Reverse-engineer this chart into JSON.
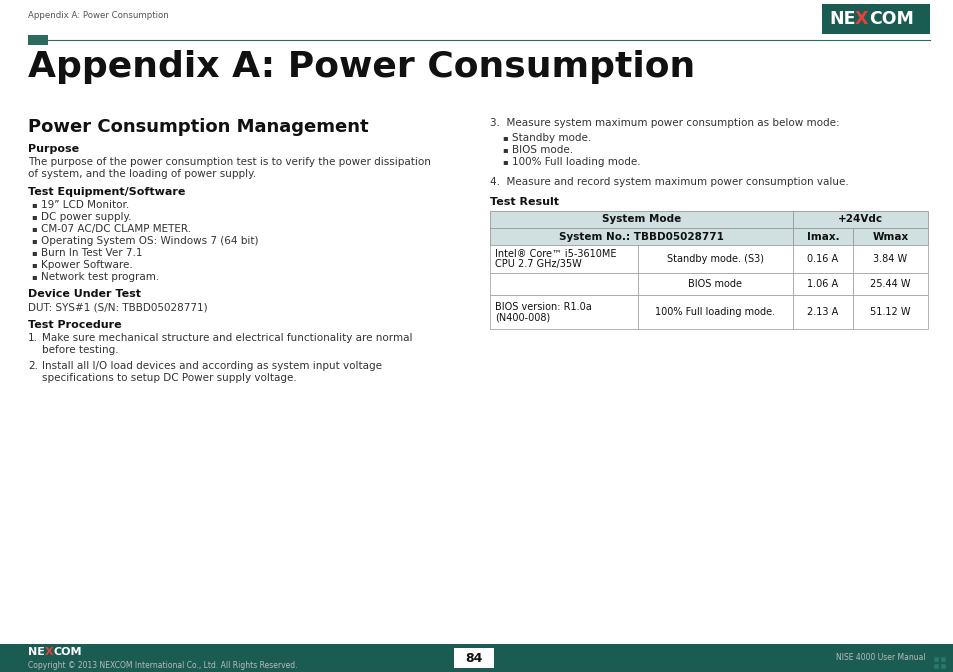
{
  "page_title": "Appendix A: Power Consumption",
  "section_title": "Power Consumption Management",
  "header_breadcrumb": "Appendix A: Power Consumption",
  "page_number": "84",
  "footer_left": "Copyright © 2013 NEXCOM International Co., Ltd. All Rights Reserved.",
  "footer_right": "NISE 4000 User Manual",
  "bg_color": "#ffffff",
  "header_line_color": "#2d6b5e",
  "header_accent_color": "#2d6b5e",
  "footer_bg_color": "#1a5c52",
  "left_column": {
    "purpose_title": "Purpose",
    "purpose_text_line1": "The purpose of the power consumption test is to verify the power dissipation",
    "purpose_text_line2": "of system, and the loading of power supply.",
    "equipment_title": "Test Equipment/Software",
    "equipment_items": [
      "19” LCD Monitor.",
      "DC power supply.",
      "CM-07 AC/DC CLAMP METER.",
      "Operating System OS: Windows 7 (64 bit)",
      "Burn In Test Ver 7.1",
      "Kpower Software.",
      "Network test program."
    ],
    "device_title": "Device Under Test",
    "device_text": "DUT: SYS#1 (S/N: TBBD05028771)",
    "procedure_title": "Test Procedure",
    "procedure_item1_line1": "Make sure mechanical structure and electrical functionality are normal",
    "procedure_item1_line2": "before testing.",
    "procedure_item2_line1": "Install all I/O load devices and according as system input voltage",
    "procedure_item2_line2": "specifications to setup DC Power supply voltage."
  },
  "right_column": {
    "step3_text": "3.  Measure system maximum power consumption as below mode:",
    "step3_items": [
      "Standby mode.",
      "BIOS mode.",
      "100% Full loading mode."
    ],
    "step4_text": "4.  Measure and record system maximum power consumption value.",
    "test_result_title": "Test Result",
    "table_header_col1": "System Mode",
    "table_header_col1b": "System No.: TBBD05028771",
    "table_header_col2": "+24Vdc",
    "table_header_col2a": "Imax.",
    "table_header_col2b": "Wmax",
    "table_rows": [
      [
        "Intel® Core™ i5-3610ME\nCPU 2.7 GHz/35W",
        "Standby mode. (S3)",
        "0.16 A",
        "3.84 W"
      ],
      [
        "",
        "BIOS mode",
        "1.06 A",
        "25.44 W"
      ],
      [
        "BIOS version: R1.0a\n(N400-008)",
        "100% Full loading mode.",
        "2.13 A",
        "51.12 W"
      ]
    ]
  }
}
